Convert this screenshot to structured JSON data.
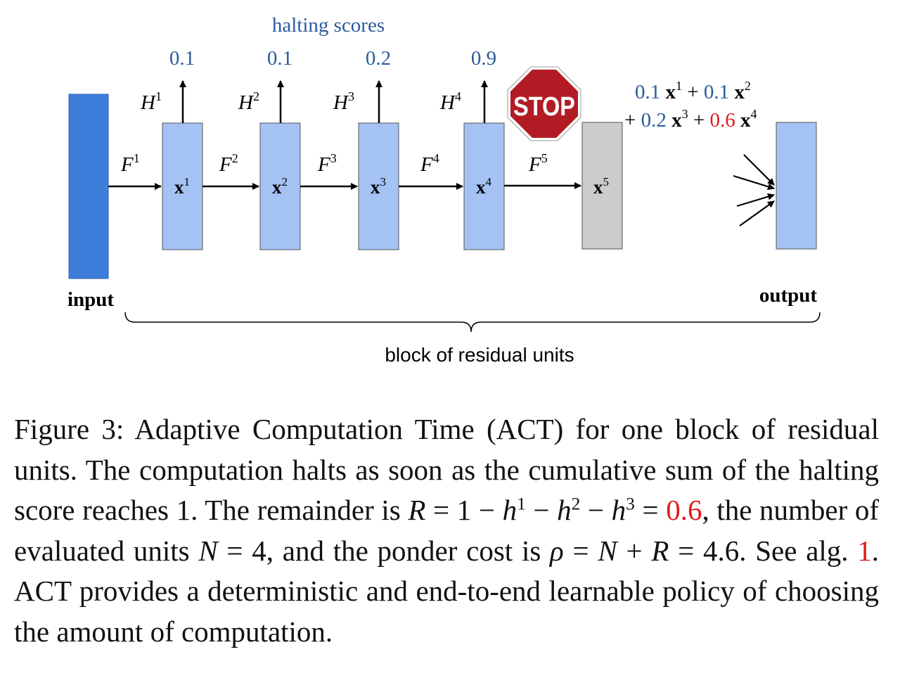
{
  "colors": {
    "input_block": "#3f7ddb",
    "unit_block": "#a4c2f4",
    "stopped_block": "#cccccc",
    "blue_text": "#2a5b9e",
    "red_text": "#e01b1b",
    "stop_sign": "#b31b24"
  },
  "diagram": {
    "halting_title": "halting scores",
    "scores": [
      "0.1",
      "0.1",
      "0.2",
      "0.9"
    ],
    "h_labels": [
      "H",
      "H",
      "H",
      "H"
    ],
    "h_sups": [
      "1",
      "2",
      "3",
      "4"
    ],
    "f_labels": [
      "F",
      "F",
      "F",
      "F",
      "F"
    ],
    "f_sups": [
      "1",
      "2",
      "3",
      "4",
      "5"
    ],
    "x_label": "x",
    "x_sups": [
      "1",
      "2",
      "3",
      "4",
      "5"
    ],
    "stop_text": "STOP",
    "sum_line1": {
      "c1": "0.1",
      "x1": "x",
      "s1": "1",
      "plus1": "+",
      "c2": "0.1",
      "x2": "x",
      "s2": "2"
    },
    "sum_line2": {
      "plus2": "+",
      "c3": "0.2",
      "x3": "x",
      "s3": "3",
      "plus3": "+",
      "c4": "0.6",
      "x4": "x",
      "s4": "4"
    },
    "input_label": "input",
    "output_label": "output",
    "brace_label": "block of residual units"
  },
  "caption": {
    "p1": "Figure 3:  Adaptive Computation Time (ACT) for one block of residual units.  The computation halts as soon as the cumulative sum of the halting score reaches 1.  The remainder is ",
    "m1": "R",
    "p2": " = 1 − ",
    "m2": "h",
    "s2": "1",
    "p3": " − ",
    "m3": "h",
    "s3": "2",
    "p4": " − ",
    "m4": "h",
    "s4": "3",
    "p5": " = ",
    "red1": "0.6",
    "p6": ", the number of evaluated units ",
    "m5": "N",
    "p7": " = 4, and the ponder cost is ",
    "m6": "ρ",
    "p8": " = ",
    "m7": "N",
    "p9": " + ",
    "m8": "R",
    "p10": " = 4.6.  See alg. ",
    "red2": "1",
    "p11": ".  ACT provides a deterministic and end-to-end learnable policy of choosing the amount of computation."
  }
}
